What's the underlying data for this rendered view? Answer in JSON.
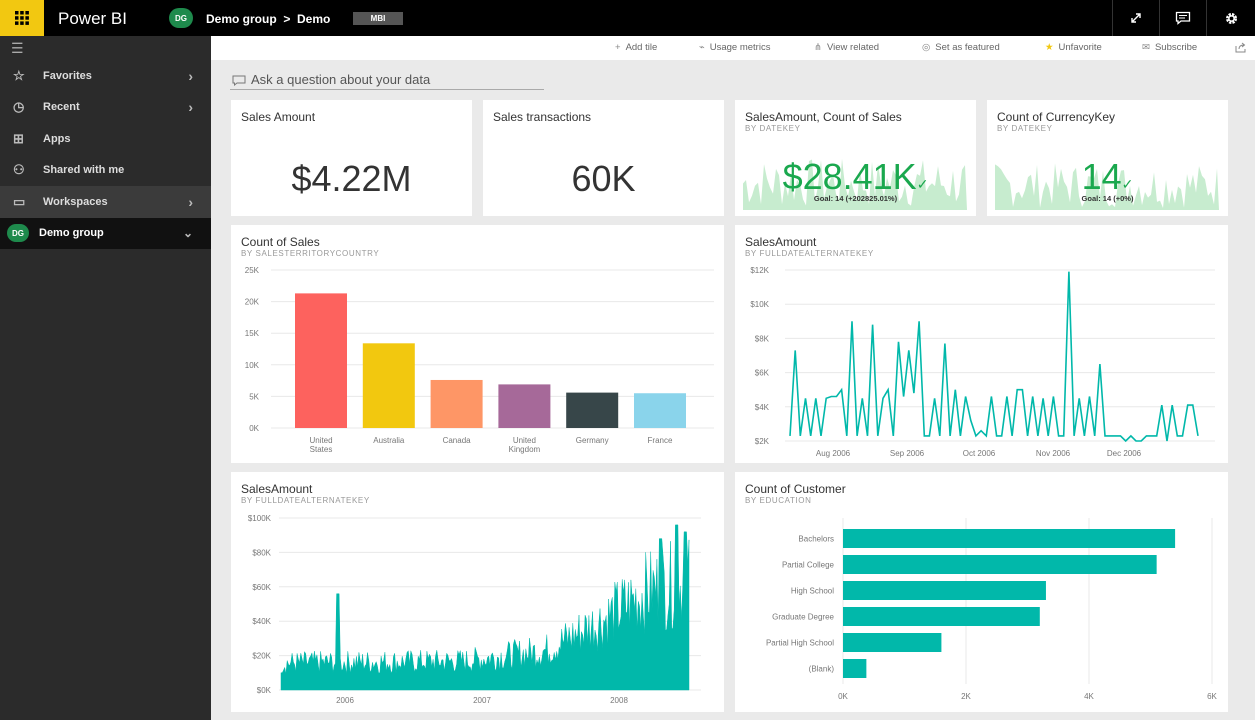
{
  "app": {
    "title": "Power BI"
  },
  "breadcrumb": {
    "avatar": "DG",
    "text": "Demo group  >  Demo",
    "badge": "MBI"
  },
  "topbar": {
    "icons": [
      "expand-icon",
      "comment-icon",
      "gear-icon"
    ]
  },
  "sidebar": {
    "items": [
      {
        "label": "Favorites",
        "icon": "star-icon"
      },
      {
        "label": "Recent",
        "icon": "clock-icon"
      },
      {
        "label": "Apps",
        "icon": "apps-icon"
      },
      {
        "label": "Shared with me",
        "icon": "shared-icon"
      },
      {
        "label": "Workspaces",
        "icon": "workspaces-icon"
      },
      {
        "label": "Demo group",
        "avatar": "DG"
      }
    ]
  },
  "actions": [
    {
      "label": "Add tile",
      "icon": "+"
    },
    {
      "label": "Usage metrics",
      "icon": "⌁"
    },
    {
      "label": "View related",
      "icon": "⋔"
    },
    {
      "label": "Set as featured",
      "icon": "◎"
    },
    {
      "label": "Unfavorite",
      "icon": "★"
    },
    {
      "label": "Subscribe",
      "icon": "✉"
    }
  ],
  "qna": {
    "placeholder": "Ask a question about your data"
  },
  "tiles": {
    "sales_amount": {
      "title": "Sales Amount",
      "value": "$4.22M"
    },
    "sales_transactions": {
      "title": "Sales transactions",
      "value": "60K"
    },
    "kpi_sales": {
      "title": "SalesAmount, Count of Sales",
      "subtitle": "BY DATEKEY",
      "value": "$28.41K",
      "goal": "Goal: 14 (+202825.01%)"
    },
    "kpi_currency": {
      "title": "Count of CurrencyKey",
      "subtitle": "BY DATEKEY",
      "value": "14",
      "goal": "Goal: 14 (+0%)"
    },
    "count_of_sales": {
      "title": "Count of Sales",
      "subtitle": "BY SALESTERRITORYCOUNTRY"
    },
    "sales_amount_line": {
      "title": "SalesAmount",
      "subtitle": "BY FULLDATEALTERNATEKEY"
    },
    "sales_amount_area": {
      "title": "SalesAmount",
      "subtitle": "BY FULLDATEALTERNATEKEY"
    },
    "count_of_customer": {
      "title": "Count of Customer",
      "subtitle": "BY EDUCATION"
    }
  },
  "chart_data": [
    {
      "type": "bar",
      "categories": [
        "United States",
        "Australia",
        "Canada",
        "United Kingdom",
        "Germany",
        "France"
      ],
      "category_lines": [
        [
          "United",
          "States"
        ],
        [
          "Australia"
        ],
        [
          "Canada"
        ],
        [
          "United",
          "Kingdom"
        ],
        [
          "Germany"
        ],
        [
          "France"
        ]
      ],
      "values": [
        21300,
        13400,
        7600,
        6900,
        5600,
        5500
      ],
      "colors": [
        "#fd625e",
        "#f2c80f",
        "#fe9666",
        "#a66999",
        "#374649",
        "#8ad4eb"
      ],
      "ylim": [
        0,
        25000
      ],
      "yticks": [
        0,
        5000,
        10000,
        15000,
        20000,
        25000
      ],
      "ytick_labels": [
        "0K",
        "5K",
        "10K",
        "15K",
        "20K",
        "25K"
      ],
      "title": "Count of Sales",
      "xlabel": "",
      "ylabel": ""
    },
    {
      "type": "line",
      "color": "#01b8aa",
      "ylim": [
        2000,
        12000
      ],
      "yticks": [
        2000,
        4000,
        6000,
        8000,
        10000,
        12000
      ],
      "ytick_labels": [
        "$2K",
        "$4K",
        "$6K",
        "$8K",
        "$10K",
        "$12K"
      ],
      "xtick_labels": [
        "Aug 2006",
        "Sep 2006",
        "Oct 2006",
        "Nov 2006",
        "Dec 2006"
      ],
      "values": [
        2300,
        7300,
        2300,
        4500,
        2300,
        4500,
        2300,
        4500,
        4600,
        4600,
        5000,
        2300,
        9000,
        2300,
        4500,
        2300,
        8800,
        2300,
        4500,
        5000,
        2300,
        7800,
        4600,
        7300,
        4800,
        9000,
        2300,
        2300,
        4500,
        2300,
        7700,
        2300,
        5000,
        2300,
        4600,
        3200,
        2300,
        2600,
        2300,
        4600,
        2300,
        2300,
        4600,
        2300,
        5000,
        5000,
        2300,
        4600,
        2300,
        4500,
        2300,
        4600,
        2300,
        2300,
        11900,
        2300,
        4500,
        2300,
        4600,
        2300,
        6500,
        2300,
        2300,
        2300,
        2300,
        2000,
        2300,
        2000,
        2000,
        2300,
        2300,
        2300,
        4100,
        2000,
        4100,
        2300,
        2300,
        4100,
        4100,
        2300
      ],
      "title": "SalesAmount",
      "xlabel": "",
      "ylabel": ""
    },
    {
      "type": "area",
      "color": "#01b8aa",
      "ylim": [
        0,
        100000
      ],
      "yticks": [
        0,
        20000,
        40000,
        60000,
        80000,
        100000
      ],
      "ytick_labels": [
        "$0K",
        "$20K",
        "$40K",
        "$60K",
        "$80K",
        "$100K"
      ],
      "xtick_labels": [
        "2006",
        "2007",
        "2008"
      ],
      "trend": [
        [
          0,
          15000
        ],
        [
          0.45,
          16000
        ],
        [
          0.65,
          22000
        ],
        [
          0.8,
          40000
        ],
        [
          0.9,
          55000
        ],
        [
          1,
          60000
        ]
      ],
      "peaks": [
        [
          0.14,
          56000
        ],
        [
          0.97,
          96000
        ],
        [
          0.93,
          88000
        ],
        [
          0.99,
          92000
        ]
      ],
      "title": "SalesAmount",
      "xlabel": "",
      "ylabel": ""
    },
    {
      "type": "bar",
      "orientation": "horizontal",
      "categories": [
        "Bachelors",
        "Partial College",
        "High School",
        "Graduate Degree",
        "Partial High School",
        "(Blank)"
      ],
      "values": [
        5400,
        5100,
        3300,
        3200,
        1600,
        380
      ],
      "color": "#01b8aa",
      "xlim": [
        0,
        6000
      ],
      "xticks": [
        0,
        2000,
        4000,
        6000
      ],
      "xtick_labels": [
        "0K",
        "2K",
        "4K",
        "6K"
      ],
      "title": "Count of Customer",
      "xlabel": "",
      "ylabel": ""
    }
  ]
}
